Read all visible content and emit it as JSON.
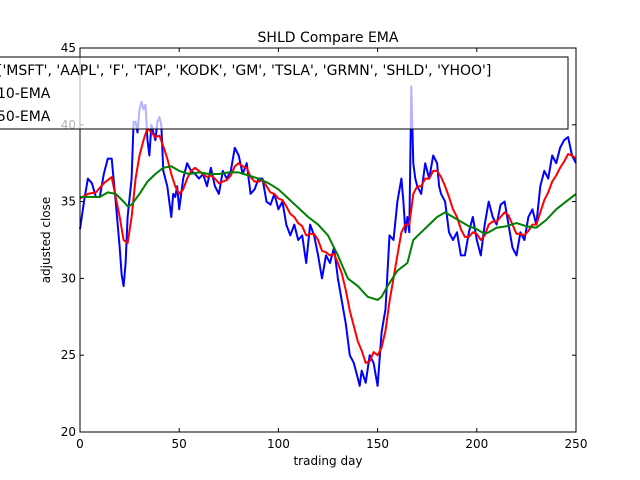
{
  "chart_data": {
    "type": "line",
    "title": "SHLD Compare EMA",
    "xlabel": "trading day",
    "ylabel": "adjusted close",
    "xlim": [
      0,
      250
    ],
    "ylim": [
      20,
      45
    ],
    "xticks": [
      0,
      50,
      100,
      150,
      200,
      250
    ],
    "yticks": [
      20,
      25,
      30,
      35,
      40,
      45
    ],
    "grid": false,
    "legend_position": "top",
    "series": [
      {
        "name": "['MSFT', 'AAPL', 'F', 'TAP', 'KODK', 'GM', 'TSLA', 'GRMN', 'SHLD', 'YHOO']",
        "color": "#0000ff",
        "points": [
          [
            0,
            33.2
          ],
          [
            2,
            35.0
          ],
          [
            4,
            36.5
          ],
          [
            6,
            36.2
          ],
          [
            8,
            35.3
          ],
          [
            10,
            35.3
          ],
          [
            12,
            36.8
          ],
          [
            14,
            37.8
          ],
          [
            16,
            37.8
          ],
          [
            18,
            35.0
          ],
          [
            20,
            32.0
          ],
          [
            21,
            30.2
          ],
          [
            22,
            29.5
          ],
          [
            23,
            31.0
          ],
          [
            24,
            34.0
          ],
          [
            26,
            36.5
          ],
          [
            27,
            40.2
          ],
          [
            28,
            40.2
          ],
          [
            29,
            39.5
          ],
          [
            30,
            41.0
          ],
          [
            31,
            41.5
          ],
          [
            32,
            41.0
          ],
          [
            33,
            41.3
          ],
          [
            34,
            39.0
          ],
          [
            35,
            38.0
          ],
          [
            36,
            40.0
          ],
          [
            37,
            39.5
          ],
          [
            38,
            39.0
          ],
          [
            39,
            40.2
          ],
          [
            40,
            40.5
          ],
          [
            41,
            40.0
          ],
          [
            42,
            37.0
          ],
          [
            43,
            36.5
          ],
          [
            44,
            36.0
          ],
          [
            45,
            35.0
          ],
          [
            46,
            34.0
          ],
          [
            47,
            35.5
          ],
          [
            48,
            35.3
          ],
          [
            49,
            36.0
          ],
          [
            50,
            34.5
          ],
          [
            52,
            36.5
          ],
          [
            54,
            37.5
          ],
          [
            56,
            37.0
          ],
          [
            58,
            36.8
          ],
          [
            60,
            36.5
          ],
          [
            62,
            36.8
          ],
          [
            64,
            36.0
          ],
          [
            66,
            37.2
          ],
          [
            68,
            36.0
          ],
          [
            70,
            35.5
          ],
          [
            72,
            37.0
          ],
          [
            74,
            36.5
          ],
          [
            76,
            37.0
          ],
          [
            78,
            38.5
          ],
          [
            80,
            38.0
          ],
          [
            82,
            36.8
          ],
          [
            84,
            37.5
          ],
          [
            86,
            35.5
          ],
          [
            88,
            35.8
          ],
          [
            90,
            36.5
          ],
          [
            92,
            36.5
          ],
          [
            94,
            35.0
          ],
          [
            96,
            34.8
          ],
          [
            98,
            35.5
          ],
          [
            100,
            34.5
          ],
          [
            102,
            35.0
          ],
          [
            104,
            33.5
          ],
          [
            106,
            32.8
          ],
          [
            108,
            33.5
          ],
          [
            110,
            32.5
          ],
          [
            112,
            32.8
          ],
          [
            114,
            31.0
          ],
          [
            116,
            33.5
          ],
          [
            118,
            32.8
          ],
          [
            120,
            31.5
          ],
          [
            122,
            30.0
          ],
          [
            124,
            31.5
          ],
          [
            126,
            31.0
          ],
          [
            128,
            32.0
          ],
          [
            130,
            30.0
          ],
          [
            132,
            28.5
          ],
          [
            134,
            27.0
          ],
          [
            136,
            25.0
          ],
          [
            138,
            24.5
          ],
          [
            140,
            23.5
          ],
          [
            141,
            23.0
          ],
          [
            142,
            24.0
          ],
          [
            144,
            23.2
          ],
          [
            146,
            25.0
          ],
          [
            148,
            24.5
          ],
          [
            150,
            23.0
          ],
          [
            152,
            26.5
          ],
          [
            154,
            28.0
          ],
          [
            156,
            32.8
          ],
          [
            158,
            32.5
          ],
          [
            160,
            35.0
          ],
          [
            162,
            36.5
          ],
          [
            163,
            35.0
          ],
          [
            164,
            33.0
          ],
          [
            165,
            34.0
          ],
          [
            166,
            33.0
          ],
          [
            167,
            42.5
          ],
          [
            168,
            37.5
          ],
          [
            169,
            36.5
          ],
          [
            170,
            36.0
          ],
          [
            172,
            35.5
          ],
          [
            174,
            37.5
          ],
          [
            176,
            36.5
          ],
          [
            178,
            38.0
          ],
          [
            180,
            37.5
          ],
          [
            181,
            36.0
          ],
          [
            182,
            35.5
          ],
          [
            184,
            35.0
          ],
          [
            186,
            33.0
          ],
          [
            188,
            32.5
          ],
          [
            190,
            33.0
          ],
          [
            192,
            31.5
          ],
          [
            194,
            31.5
          ],
          [
            196,
            33.0
          ],
          [
            198,
            34.0
          ],
          [
            200,
            32.5
          ],
          [
            202,
            31.5
          ],
          [
            204,
            33.5
          ],
          [
            206,
            35.0
          ],
          [
            208,
            34.0
          ],
          [
            210,
            33.5
          ],
          [
            212,
            34.8
          ],
          [
            214,
            35.0
          ],
          [
            216,
            33.5
          ],
          [
            218,
            32.0
          ],
          [
            220,
            31.5
          ],
          [
            222,
            33.0
          ],
          [
            224,
            32.5
          ],
          [
            226,
            34.0
          ],
          [
            228,
            34.5
          ],
          [
            230,
            33.5
          ],
          [
            232,
            36.0
          ],
          [
            234,
            37.0
          ],
          [
            236,
            36.5
          ],
          [
            238,
            38.0
          ],
          [
            240,
            37.5
          ],
          [
            242,
            38.5
          ],
          [
            244,
            39.0
          ],
          [
            246,
            39.2
          ],
          [
            248,
            38.0
          ],
          [
            250,
            37.5
          ]
        ]
      },
      {
        "name": "10-EMA",
        "color": "#ff0000",
        "points": [
          [
            0,
            35.2
          ],
          [
            4,
            35.5
          ],
          [
            8,
            35.6
          ],
          [
            12,
            36.2
          ],
          [
            16,
            36.6
          ],
          [
            18,
            35.3
          ],
          [
            20,
            34.0
          ],
          [
            22,
            32.5
          ],
          [
            24,
            32.3
          ],
          [
            26,
            34.0
          ],
          [
            28,
            36.5
          ],
          [
            30,
            38.0
          ],
          [
            32,
            39.0
          ],
          [
            34,
            39.8
          ],
          [
            36,
            39.5
          ],
          [
            38,
            39.2
          ],
          [
            40,
            39.3
          ],
          [
            42,
            38.6
          ],
          [
            44,
            37.8
          ],
          [
            46,
            36.8
          ],
          [
            48,
            36.0
          ],
          [
            50,
            35.5
          ],
          [
            52,
            35.8
          ],
          [
            54,
            36.5
          ],
          [
            56,
            37.0
          ],
          [
            58,
            37.2
          ],
          [
            60,
            37.0
          ],
          [
            62,
            36.8
          ],
          [
            64,
            36.6
          ],
          [
            66,
            36.7
          ],
          [
            68,
            36.5
          ],
          [
            70,
            36.2
          ],
          [
            72,
            36.3
          ],
          [
            74,
            36.4
          ],
          [
            76,
            36.7
          ],
          [
            78,
            37.3
          ],
          [
            80,
            37.5
          ],
          [
            82,
            37.3
          ],
          [
            84,
            37.2
          ],
          [
            86,
            36.6
          ],
          [
            88,
            36.3
          ],
          [
            90,
            36.3
          ],
          [
            92,
            36.4
          ],
          [
            94,
            36.0
          ],
          [
            96,
            35.6
          ],
          [
            98,
            35.5
          ],
          [
            100,
            35.2
          ],
          [
            102,
            35.1
          ],
          [
            104,
            34.7
          ],
          [
            106,
            34.2
          ],
          [
            108,
            34.0
          ],
          [
            110,
            33.6
          ],
          [
            112,
            33.4
          ],
          [
            114,
            32.8
          ],
          [
            116,
            32.9
          ],
          [
            118,
            32.9
          ],
          [
            120,
            32.5
          ],
          [
            122,
            31.8
          ],
          [
            124,
            31.7
          ],
          [
            126,
            31.5
          ],
          [
            128,
            31.6
          ],
          [
            130,
            31.0
          ],
          [
            132,
            30.3
          ],
          [
            134,
            29.2
          ],
          [
            136,
            27.9
          ],
          [
            138,
            26.9
          ],
          [
            140,
            25.9
          ],
          [
            142,
            25.3
          ],
          [
            144,
            24.5
          ],
          [
            146,
            24.6
          ],
          [
            148,
            25.2
          ],
          [
            150,
            25.0
          ],
          [
            152,
            25.5
          ],
          [
            154,
            26.6
          ],
          [
            156,
            28.5
          ],
          [
            158,
            30.0
          ],
          [
            160,
            31.5
          ],
          [
            162,
            33.0
          ],
          [
            164,
            33.5
          ],
          [
            166,
            33.5
          ],
          [
            168,
            35.5
          ],
          [
            170,
            36.0
          ],
          [
            172,
            36.0
          ],
          [
            174,
            36.5
          ],
          [
            176,
            36.5
          ],
          [
            178,
            37.0
          ],
          [
            180,
            37.0
          ],
          [
            182,
            36.6
          ],
          [
            184,
            36.0
          ],
          [
            186,
            35.3
          ],
          [
            188,
            34.5
          ],
          [
            190,
            34.0
          ],
          [
            192,
            33.2
          ],
          [
            194,
            32.7
          ],
          [
            196,
            32.7
          ],
          [
            198,
            33.0
          ],
          [
            200,
            32.9
          ],
          [
            202,
            32.5
          ],
          [
            204,
            32.8
          ],
          [
            206,
            33.5
          ],
          [
            208,
            33.7
          ],
          [
            210,
            33.7
          ],
          [
            212,
            34.0
          ],
          [
            214,
            34.3
          ],
          [
            216,
            34.1
          ],
          [
            218,
            33.5
          ],
          [
            220,
            32.9
          ],
          [
            222,
            32.9
          ],
          [
            224,
            32.8
          ],
          [
            226,
            33.1
          ],
          [
            228,
            33.5
          ],
          [
            230,
            33.5
          ],
          [
            232,
            34.3
          ],
          [
            234,
            35.1
          ],
          [
            236,
            35.6
          ],
          [
            238,
            36.3
          ],
          [
            240,
            36.7
          ],
          [
            242,
            37.2
          ],
          [
            244,
            37.6
          ],
          [
            246,
            38.1
          ],
          [
            248,
            38.0
          ],
          [
            250,
            37.8
          ]
        ]
      },
      {
        "name": "50-EMA",
        "color": "#008000",
        "points": [
          [
            0,
            35.3
          ],
          [
            5,
            35.3
          ],
          [
            10,
            35.3
          ],
          [
            14,
            35.6
          ],
          [
            18,
            35.5
          ],
          [
            22,
            35.0
          ],
          [
            24,
            34.7
          ],
          [
            26,
            34.8
          ],
          [
            30,
            35.5
          ],
          [
            34,
            36.3
          ],
          [
            38,
            36.8
          ],
          [
            42,
            37.2
          ],
          [
            46,
            37.3
          ],
          [
            50,
            37.0
          ],
          [
            55,
            36.8
          ],
          [
            60,
            36.9
          ],
          [
            65,
            36.8
          ],
          [
            70,
            36.8
          ],
          [
            75,
            36.9
          ],
          [
            80,
            36.9
          ],
          [
            85,
            36.7
          ],
          [
            90,
            36.5
          ],
          [
            95,
            36.2
          ],
          [
            100,
            35.8
          ],
          [
            105,
            35.2
          ],
          [
            110,
            34.6
          ],
          [
            115,
            34.0
          ],
          [
            120,
            33.5
          ],
          [
            125,
            32.8
          ],
          [
            130,
            31.5
          ],
          [
            135,
            30.0
          ],
          [
            140,
            29.5
          ],
          [
            145,
            28.8
          ],
          [
            150,
            28.6
          ],
          [
            152,
            28.8
          ],
          [
            155,
            29.5
          ],
          [
            160,
            30.5
          ],
          [
            165,
            31.0
          ],
          [
            168,
            32.5
          ],
          [
            172,
            33.0
          ],
          [
            176,
            33.5
          ],
          [
            180,
            34.0
          ],
          [
            184,
            34.3
          ],
          [
            188,
            34.0
          ],
          [
            192,
            33.7
          ],
          [
            196,
            33.4
          ],
          [
            200,
            33.2
          ],
          [
            204,
            32.9
          ],
          [
            206,
            33.0
          ],
          [
            210,
            33.3
          ],
          [
            215,
            33.4
          ],
          [
            220,
            33.6
          ],
          [
            225,
            33.4
          ],
          [
            230,
            33.3
          ],
          [
            235,
            33.8
          ],
          [
            240,
            34.5
          ],
          [
            245,
            35.0
          ],
          [
            250,
            35.5
          ]
        ]
      }
    ]
  }
}
